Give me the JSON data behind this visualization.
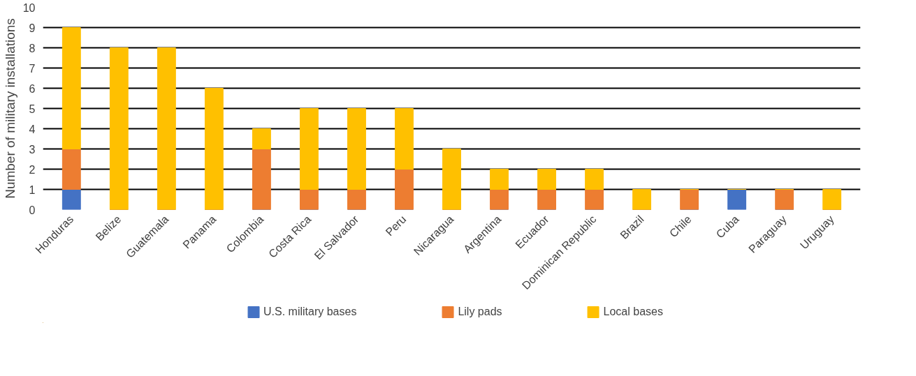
{
  "chart_data": {
    "type": "bar",
    "stacked": true,
    "ylabel": "Number of military installations",
    "categories": [
      "Honduras",
      "Belize",
      "Guatemala",
      "Panama",
      "Colombia",
      "Costa Rica",
      "El Salvador",
      "Peru",
      "Nicaragua",
      "Argentina",
      "Ecuador",
      "Dominican Republic",
      "Brazil",
      "Chile",
      "Cuba",
      "Paraguay",
      "Uruguay"
    ],
    "series": [
      {
        "name": "U.S. military bases",
        "color": "#4472c4",
        "values": [
          1,
          0,
          0,
          0,
          0,
          0,
          0,
          0,
          0,
          0,
          0,
          0,
          0,
          0,
          1,
          0,
          0
        ]
      },
      {
        "name": "Lily pads",
        "color": "#ed7d31",
        "values": [
          2,
          0,
          0,
          0,
          3,
          1,
          1,
          2,
          0,
          1,
          1,
          1,
          0,
          1,
          0,
          1,
          0
        ]
      },
      {
        "name": "Local bases",
        "color": "#ffc000",
        "values": [
          6,
          8,
          8,
          6,
          1,
          4,
          4,
          3,
          3,
          1,
          1,
          1,
          1,
          0,
          0,
          0,
          1
        ]
      }
    ],
    "ylim": [
      0,
      10
    ],
    "yticks": [
      0,
      1,
      2,
      3,
      4,
      5,
      6,
      7,
      8,
      9,
      10
    ],
    "grid": "y",
    "legend": "bottom"
  }
}
